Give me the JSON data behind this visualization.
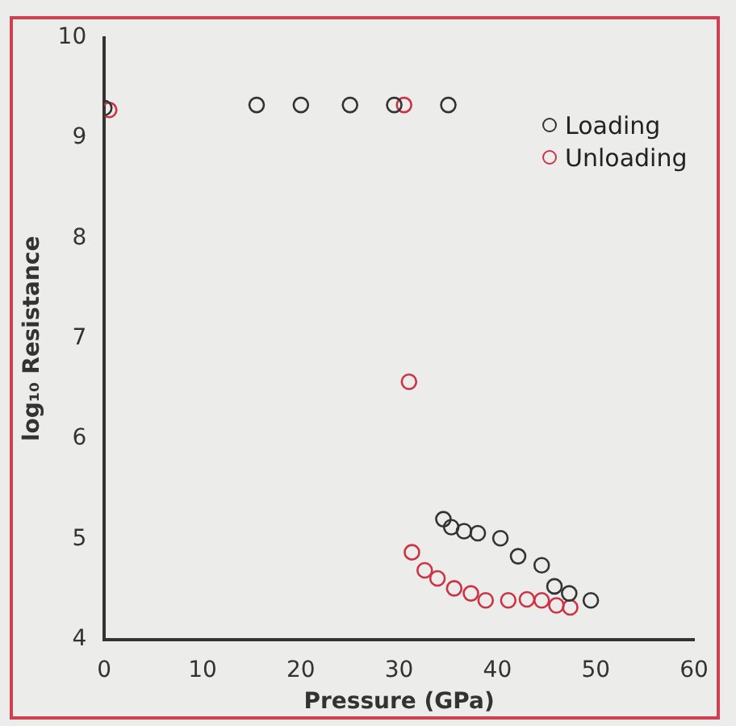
{
  "chart_data": {
    "type": "scatter",
    "xlabel": "Pressure (GPa)",
    "ylabel": "log₁₀ Resistance",
    "xlim": [
      0,
      60
    ],
    "xticks": [
      0,
      10,
      20,
      30,
      40,
      50,
      60
    ],
    "ylim": [
      4,
      10
    ],
    "yticks": [
      4,
      5,
      6,
      7,
      8,
      9,
      10
    ],
    "grid": false,
    "legend": "top right",
    "marker": "circle",
    "series": [
      {
        "name": "Loading",
        "color": "#333333",
        "x": [
          0,
          15.5,
          20,
          25,
          29.5,
          35,
          34.5,
          35.3,
          36.6,
          38,
          40.3,
          42.1,
          44.5,
          45.8,
          47.3,
          49.5
        ],
        "values": [
          9.3,
          9.33,
          9.33,
          9.33,
          9.33,
          9.33,
          5.2,
          5.12,
          5.08,
          5.06,
          5.01,
          4.83,
          4.74,
          4.53,
          4.46,
          4.39
        ]
      },
      {
        "name": "Unloading",
        "color": "#cc3344",
        "x": [
          0.5,
          30.5,
          31,
          31.3,
          32.6,
          33.9,
          35.6,
          37.3,
          38.8,
          41.1,
          43,
          44.5,
          46,
          47.4
        ],
        "values": [
          9.28,
          9.33,
          6.57,
          4.87,
          4.69,
          4.61,
          4.51,
          4.46,
          4.39,
          4.39,
          4.4,
          4.39,
          4.34,
          4.32
        ]
      }
    ]
  }
}
